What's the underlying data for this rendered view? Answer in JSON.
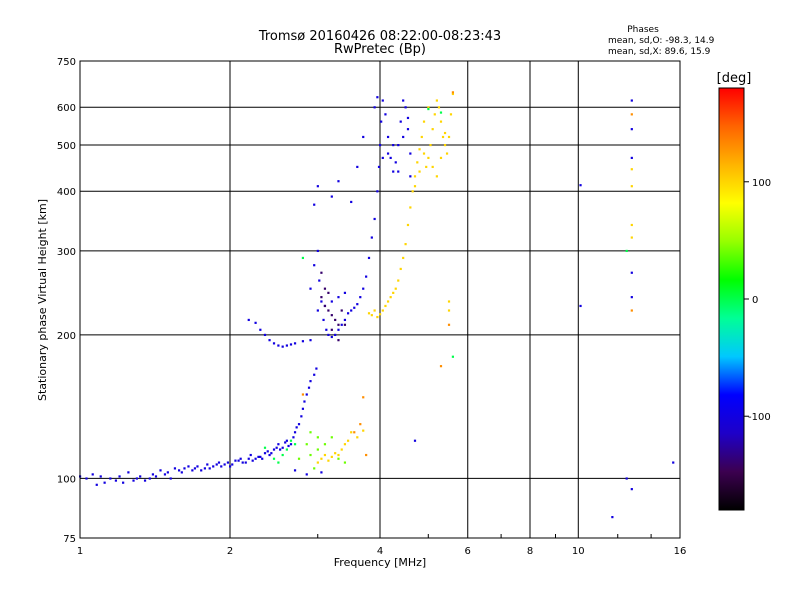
{
  "chart_data": {
    "type": "scatter",
    "title": "Tromsø 20160426 08:22:00-08:23:43",
    "subtitle": "RwPretec (Bp)",
    "xlabel": "Frequency [MHz]",
    "ylabel": "Stationary phase Virtual Height [km]",
    "x_scale": "log",
    "y_scale": "log",
    "xlim": [
      1,
      16
    ],
    "ylim": [
      75,
      750
    ],
    "x_ticks": [
      1,
      2,
      4,
      6,
      8,
      10,
      16
    ],
    "y_ticks": [
      75,
      100,
      200,
      300,
      400,
      500,
      600,
      750
    ],
    "grid": true,
    "phase_stats": {
      "heading": "Phases",
      "line_o": "mean, sd,O: -98.3, 14.9",
      "line_x": "mean, sd,X:  89.6, 15.9"
    },
    "colorbar": {
      "label": "[deg]",
      "range": [
        -180,
        180
      ],
      "ticks": [
        100,
        0,
        -100
      ],
      "colors": [
        "#000000",
        "#3c0050",
        "#1e00c8",
        "#0000ff",
        "#00c8ff",
        "#00ff96",
        "#00ff00",
        "#96ff00",
        "#ffff00",
        "#ffb400",
        "#ff6400",
        "#ff0000"
      ]
    },
    "series": [
      {
        "phase_deg": -100,
        "points": [
          [
            1.0,
            101
          ],
          [
            1.03,
            100
          ],
          [
            1.06,
            102
          ],
          [
            1.1,
            101
          ],
          [
            1.15,
            100
          ],
          [
            1.2,
            101
          ],
          [
            1.25,
            103
          ],
          [
            1.3,
            100
          ],
          [
            1.35,
            99
          ],
          [
            1.4,
            102
          ],
          [
            1.45,
            104
          ],
          [
            1.5,
            103
          ],
          [
            1.55,
            105
          ],
          [
            1.6,
            103
          ],
          [
            1.65,
            106
          ],
          [
            1.7,
            105
          ],
          [
            1.75,
            104
          ],
          [
            1.8,
            107
          ],
          [
            1.85,
            106
          ],
          [
            1.9,
            108
          ],
          [
            1.95,
            107
          ],
          [
            2.0,
            106
          ],
          [
            2.05,
            109
          ],
          [
            2.1,
            110
          ],
          [
            2.15,
            108
          ],
          [
            2.2,
            112
          ],
          [
            2.25,
            110
          ],
          [
            2.3,
            111
          ],
          [
            2.35,
            113
          ],
          [
            2.4,
            112
          ],
          [
            2.45,
            115
          ],
          [
            2.5,
            118
          ],
          [
            2.55,
            116
          ],
          [
            2.6,
            120
          ],
          [
            2.65,
            118
          ],
          [
            2.7,
            125
          ],
          [
            2.75,
            130
          ],
          [
            2.8,
            140
          ],
          [
            2.85,
            150
          ],
          [
            2.9,
            160
          ],
          [
            2.95,
            165
          ],
          [
            2.18,
            215
          ],
          [
            2.25,
            212
          ],
          [
            2.3,
            205
          ],
          [
            2.35,
            200
          ],
          [
            2.4,
            195
          ],
          [
            2.45,
            192
          ],
          [
            2.5,
            190
          ],
          [
            2.55,
            189
          ],
          [
            2.6,
            190
          ],
          [
            2.65,
            191
          ],
          [
            2.7,
            192
          ],
          [
            2.8,
            194
          ],
          [
            2.9,
            250
          ],
          [
            2.95,
            280
          ],
          [
            3.0,
            300
          ],
          [
            3.02,
            260
          ],
          [
            3.05,
            235
          ],
          [
            3.08,
            215
          ],
          [
            3.12,
            205
          ],
          [
            3.15,
            200
          ],
          [
            3.2,
            198
          ],
          [
            3.25,
            200
          ],
          [
            3.3,
            205
          ],
          [
            3.35,
            210
          ],
          [
            3.4,
            215
          ],
          [
            3.45,
            222
          ],
          [
            3.5,
            225
          ],
          [
            3.55,
            228
          ],
          [
            3.6,
            232
          ],
          [
            3.65,
            240
          ],
          [
            3.7,
            250
          ],
          [
            3.75,
            265
          ],
          [
            3.8,
            290
          ],
          [
            3.85,
            320
          ],
          [
            3.9,
            350
          ],
          [
            3.95,
            400
          ],
          [
            3.98,
            450
          ],
          [
            4.0,
            500
          ],
          [
            4.02,
            560
          ],
          [
            4.05,
            620
          ],
          [
            4.1,
            580
          ],
          [
            4.15,
            520
          ],
          [
            4.2,
            470
          ],
          [
            4.25,
            440
          ],
          [
            4.3,
            460
          ],
          [
            4.35,
            500
          ],
          [
            4.4,
            560
          ],
          [
            4.45,
            620
          ],
          [
            4.5,
            600
          ],
          [
            4.55,
            540
          ],
          [
            4.6,
            480
          ],
          [
            3.0,
            225
          ],
          [
            3.1,
            230
          ],
          [
            3.2,
            235
          ],
          [
            3.3,
            240
          ],
          [
            3.4,
            245
          ],
          [
            3.5,
            380
          ],
          [
            3.6,
            450
          ],
          [
            3.7,
            520
          ],
          [
            3.3,
            420
          ],
          [
            3.2,
            390
          ],
          [
            2.9,
            195
          ],
          [
            1.08,
            97
          ],
          [
            1.12,
            98
          ],
          [
            1.18,
            99
          ],
          [
            1.22,
            98
          ],
          [
            1.28,
            99
          ],
          [
            1.32,
            101
          ],
          [
            1.38,
            100
          ],
          [
            1.42,
            101
          ],
          [
            1.48,
            102
          ],
          [
            1.52,
            100
          ],
          [
            1.58,
            104
          ],
          [
            1.62,
            105
          ],
          [
            1.68,
            104
          ],
          [
            1.72,
            106
          ],
          [
            1.78,
            105
          ],
          [
            1.82,
            105
          ],
          [
            1.88,
            107
          ],
          [
            1.92,
            106
          ],
          [
            1.98,
            108
          ],
          [
            2.02,
            107
          ],
          [
            2.08,
            109
          ],
          [
            2.12,
            108
          ],
          [
            2.18,
            110
          ],
          [
            2.22,
            109
          ],
          [
            2.28,
            111
          ],
          [
            2.32,
            110
          ],
          [
            2.38,
            114
          ],
          [
            2.42,
            113
          ],
          [
            2.48,
            116
          ],
          [
            2.52,
            115
          ],
          [
            2.58,
            119
          ],
          [
            2.62,
            117
          ],
          [
            2.68,
            122
          ],
          [
            2.72,
            128
          ],
          [
            2.78,
            135
          ],
          [
            2.82,
            145
          ],
          [
            2.88,
            155
          ],
          [
            2.98,
            170
          ],
          [
            3.05,
            103
          ],
          [
            2.7,
            104
          ],
          [
            2.85,
            102
          ],
          [
            3.9,
            600
          ],
          [
            3.95,
            630
          ],
          [
            4.05,
            470
          ],
          [
            4.15,
            480
          ],
          [
            4.25,
            500
          ],
          [
            4.35,
            440
          ],
          [
            4.45,
            520
          ],
          [
            4.55,
            570
          ],
          [
            4.6,
            430
          ],
          [
            3.0,
            410
          ],
          [
            2.95,
            375
          ],
          [
            10.1,
            412
          ],
          [
            10.1,
            230
          ],
          [
            12.8,
            620
          ],
          [
            12.8,
            540
          ],
          [
            12.8,
            470
          ],
          [
            12.8,
            270
          ],
          [
            12.8,
            240
          ],
          [
            12.8,
            95
          ],
          [
            12.5,
            100
          ],
          [
            15.5,
            108
          ],
          [
            11.7,
            83
          ],
          [
            4.7,
            120
          ]
        ]
      },
      {
        "phase_deg": -140,
        "points": [
          [
            3.05,
            270
          ],
          [
            3.1,
            250
          ],
          [
            3.15,
            245
          ],
          [
            3.2,
            220
          ],
          [
            3.25,
            215
          ],
          [
            3.3,
            210
          ],
          [
            3.35,
            225
          ],
          [
            3.1,
            230
          ],
          [
            3.2,
            205
          ],
          [
            3.3,
            195
          ],
          [
            3.4,
            210
          ],
          [
            3.05,
            240
          ],
          [
            3.15,
            225
          ]
        ]
      },
      {
        "phase_deg": 100,
        "points": [
          [
            3.0,
            108
          ],
          [
            3.05,
            110
          ],
          [
            3.1,
            112
          ],
          [
            3.15,
            109
          ],
          [
            3.2,
            111
          ],
          [
            3.25,
            113
          ],
          [
            3.3,
            112
          ],
          [
            3.35,
            115
          ],
          [
            3.4,
            118
          ],
          [
            3.45,
            120
          ],
          [
            3.5,
            125
          ],
          [
            3.6,
            122
          ],
          [
            3.7,
            126
          ],
          [
            3.8,
            222
          ],
          [
            3.85,
            220
          ],
          [
            3.9,
            225
          ],
          [
            3.95,
            218
          ],
          [
            4.0,
            221
          ],
          [
            4.05,
            225
          ],
          [
            4.1,
            230
          ],
          [
            4.15,
            235
          ],
          [
            4.2,
            240
          ],
          [
            4.25,
            245
          ],
          [
            4.3,
            250
          ],
          [
            4.35,
            260
          ],
          [
            4.4,
            275
          ],
          [
            4.45,
            290
          ],
          [
            4.5,
            310
          ],
          [
            4.55,
            340
          ],
          [
            4.6,
            370
          ],
          [
            4.65,
            400
          ],
          [
            4.7,
            430
          ],
          [
            4.75,
            460
          ],
          [
            4.8,
            490
          ],
          [
            4.85,
            520
          ],
          [
            4.9,
            480
          ],
          [
            4.95,
            450
          ],
          [
            5.0,
            470
          ],
          [
            5.05,
            500
          ],
          [
            5.1,
            540
          ],
          [
            5.15,
            580
          ],
          [
            5.2,
            620
          ],
          [
            5.25,
            600
          ],
          [
            5.3,
            560
          ],
          [
            5.35,
            520
          ],
          [
            5.4,
            500
          ],
          [
            5.45,
            480
          ],
          [
            5.5,
            520
          ],
          [
            5.55,
            580
          ],
          [
            5.6,
            640
          ],
          [
            4.9,
            560
          ],
          [
            5.0,
            600
          ],
          [
            5.1,
            450
          ],
          [
            5.2,
            430
          ],
          [
            5.3,
            470
          ],
          [
            5.4,
            530
          ],
          [
            4.8,
            440
          ],
          [
            4.7,
            410
          ],
          [
            5.5,
            235
          ],
          [
            5.5,
            225
          ],
          [
            12.8,
            445
          ],
          [
            12.8,
            410
          ],
          [
            12.8,
            340
          ],
          [
            12.8,
            320
          ]
        ]
      },
      {
        "phase_deg": 130,
        "points": [
          [
            3.7,
            148
          ],
          [
            3.75,
            112
          ],
          [
            3.65,
            130
          ],
          [
            3.55,
            125
          ],
          [
            2.8,
            150
          ],
          [
            5.5,
            210
          ],
          [
            5.3,
            172
          ],
          [
            12.8,
            580
          ],
          [
            12.8,
            225
          ],
          [
            5.6,
            645
          ]
        ]
      },
      {
        "phase_deg": 40,
        "points": [
          [
            2.9,
            112
          ],
          [
            3.0,
            115
          ],
          [
            2.95,
            105
          ],
          [
            3.1,
            118
          ],
          [
            3.2,
            122
          ],
          [
            2.85,
            118
          ],
          [
            2.75,
            110
          ],
          [
            3.0,
            122
          ],
          [
            2.9,
            125
          ],
          [
            3.4,
            108
          ],
          [
            3.3,
            110
          ]
        ]
      },
      {
        "phase_deg": 0,
        "points": [
          [
            2.55,
            112
          ],
          [
            2.6,
            115
          ],
          [
            2.5,
            108
          ],
          [
            2.65,
            120
          ],
          [
            2.45,
            110
          ],
          [
            2.7,
            118
          ],
          [
            2.35,
            116
          ],
          [
            2.8,
            290
          ],
          [
            5.0,
            595
          ],
          [
            5.3,
            585
          ],
          [
            12.5,
            300
          ],
          [
            5.6,
            180
          ]
        ]
      }
    ]
  }
}
